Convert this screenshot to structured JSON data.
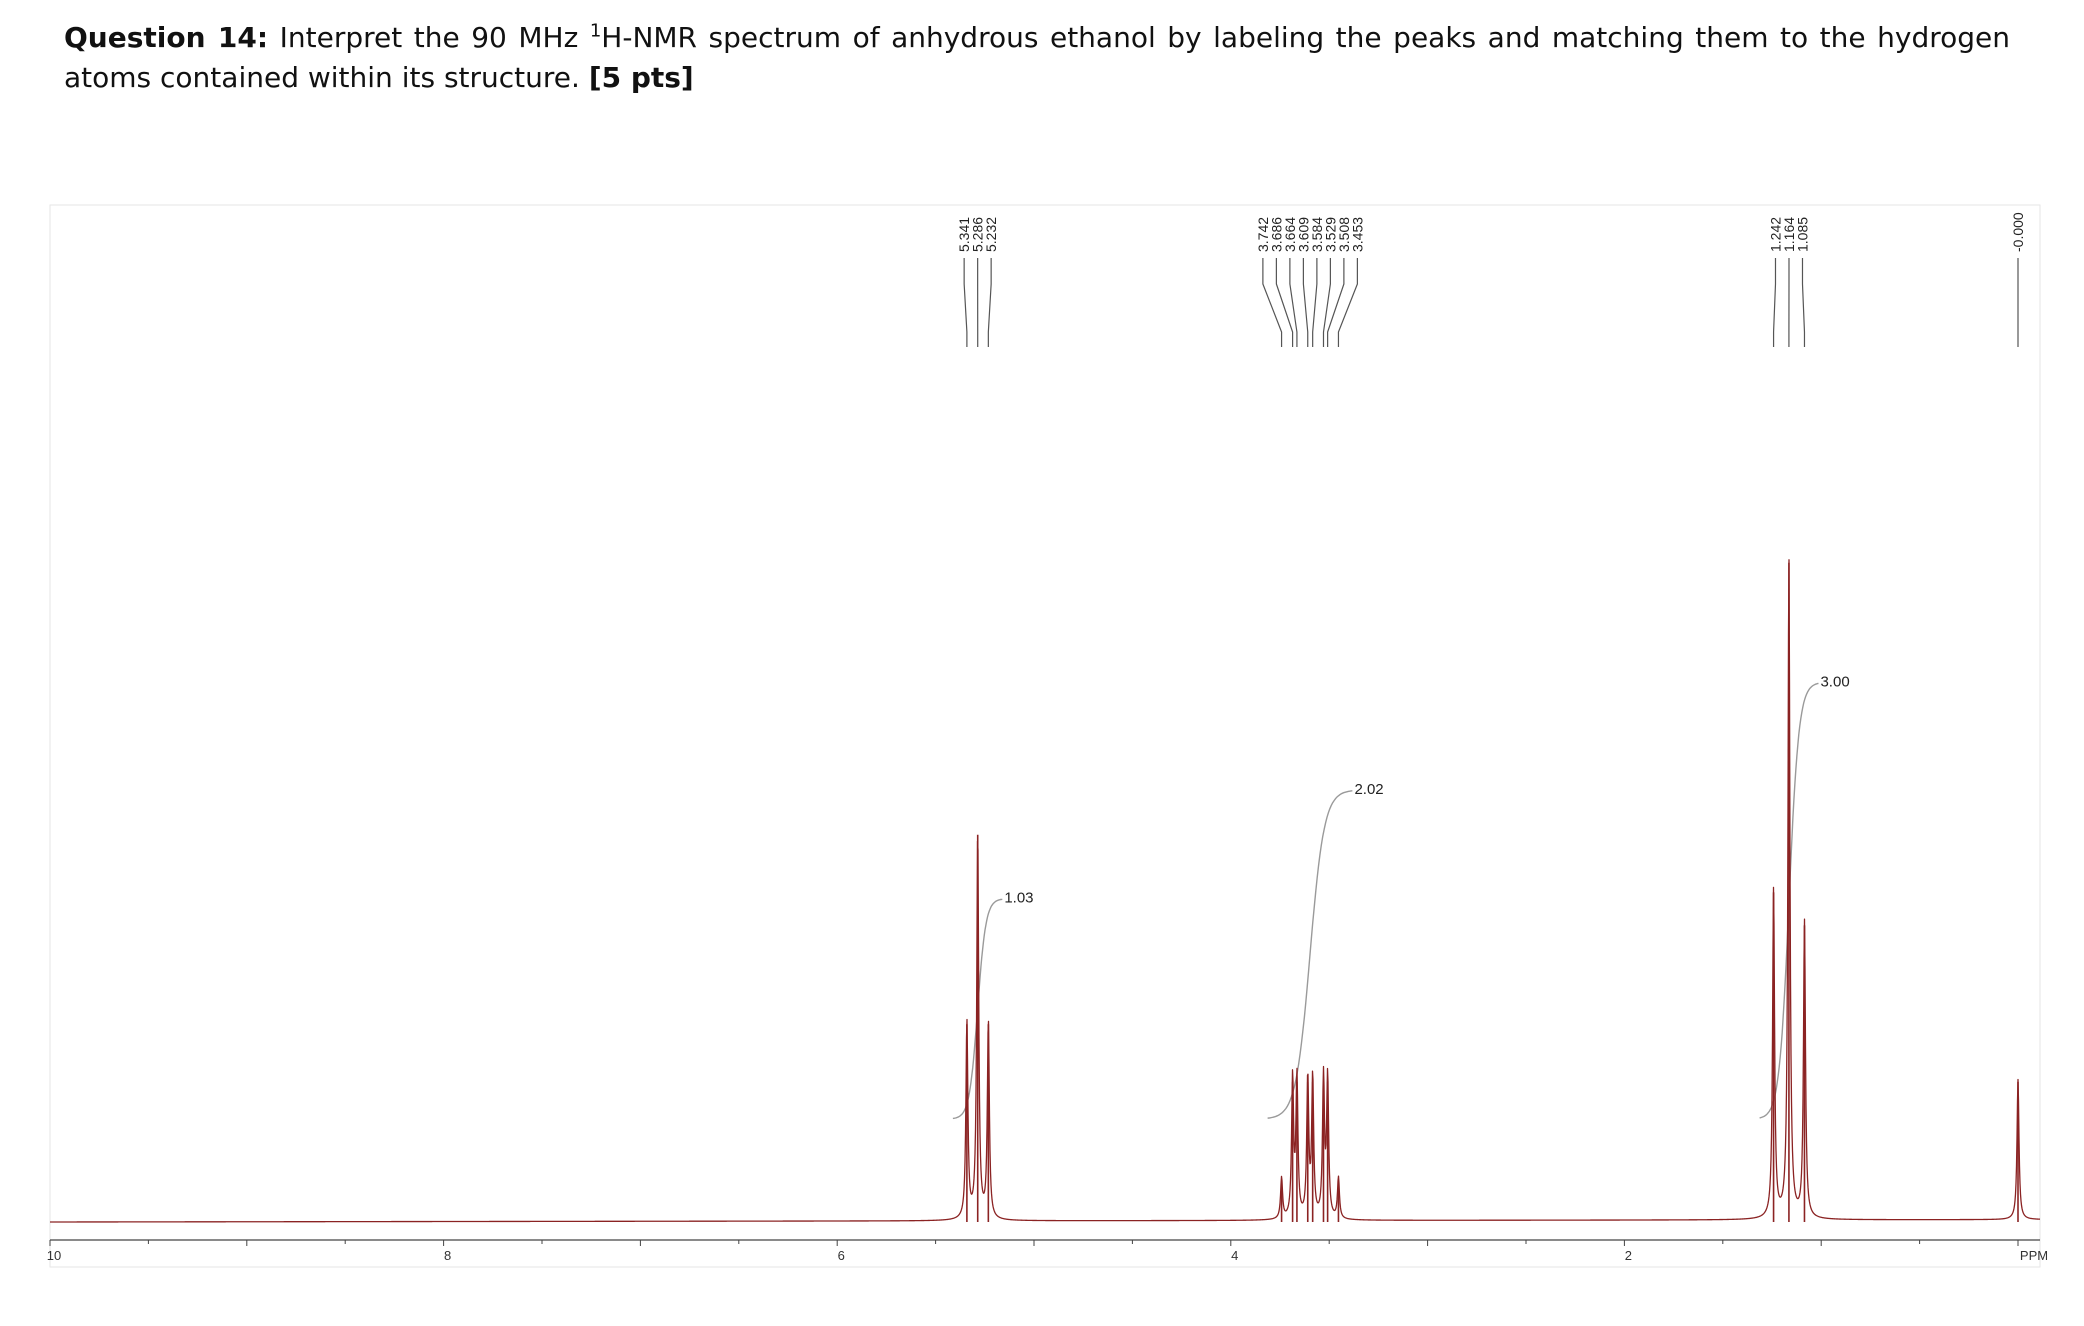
{
  "question": {
    "prefix": "Question 14:",
    "text_part1": " Interpret the 90 MHz ",
    "superscript": "1",
    "text_part2": "H-NMR spectrum of anhydrous ethanol by labeling the peaks and matching them to the hydrogen atoms contained within its structure. ",
    "points": "[5 pts]"
  },
  "chart_data": {
    "type": "line",
    "title": "",
    "xlabel": "PPM",
    "ylabel": "",
    "xlim": [
      10,
      0
    ],
    "x_ticks": [
      {
        "value": 10,
        "label": "10"
      },
      {
        "value": 8,
        "label": "8"
      },
      {
        "value": 6,
        "label": "6"
      },
      {
        "value": 4,
        "label": "4"
      },
      {
        "value": 2,
        "label": "2"
      }
    ],
    "axis_unit_label": "PPM",
    "colors": {
      "spectrum": "#8b2323",
      "integral": "#9a9a9a",
      "axis": "#444444"
    },
    "peak_groups": [
      {
        "labels": [
          "5.341",
          "5.286",
          "5.232"
        ],
        "peaks": [
          {
            "ppm": 5.341,
            "height": 0.24
          },
          {
            "ppm": 5.286,
            "height": 0.47
          },
          {
            "ppm": 5.232,
            "height": 0.24
          }
        ],
        "integral": "1.03"
      },
      {
        "labels": [
          "3.742",
          "3.686",
          "3.664",
          "3.609",
          "3.584",
          "3.529",
          "3.508",
          "3.453"
        ],
        "peaks": [
          {
            "ppm": 3.742,
            "height": 0.05
          },
          {
            "ppm": 3.686,
            "height": 0.17
          },
          {
            "ppm": 3.664,
            "height": 0.17
          },
          {
            "ppm": 3.609,
            "height": 0.17
          },
          {
            "ppm": 3.584,
            "height": 0.17
          },
          {
            "ppm": 3.529,
            "height": 0.17
          },
          {
            "ppm": 3.508,
            "height": 0.17
          },
          {
            "ppm": 3.453,
            "height": 0.05
          }
        ],
        "integral": "2.02"
      },
      {
        "labels": [
          "1.242",
          "1.164",
          "1.085"
        ],
        "peaks": [
          {
            "ppm": 1.242,
            "height": 0.4
          },
          {
            "ppm": 1.164,
            "height": 0.8
          },
          {
            "ppm": 1.085,
            "height": 0.36
          }
        ],
        "integral": "3.00"
      },
      {
        "labels": [
          "-0.000"
        ],
        "peaks": [
          {
            "ppm": 0.0,
            "height": 0.17
          }
        ],
        "integral": ""
      }
    ]
  }
}
